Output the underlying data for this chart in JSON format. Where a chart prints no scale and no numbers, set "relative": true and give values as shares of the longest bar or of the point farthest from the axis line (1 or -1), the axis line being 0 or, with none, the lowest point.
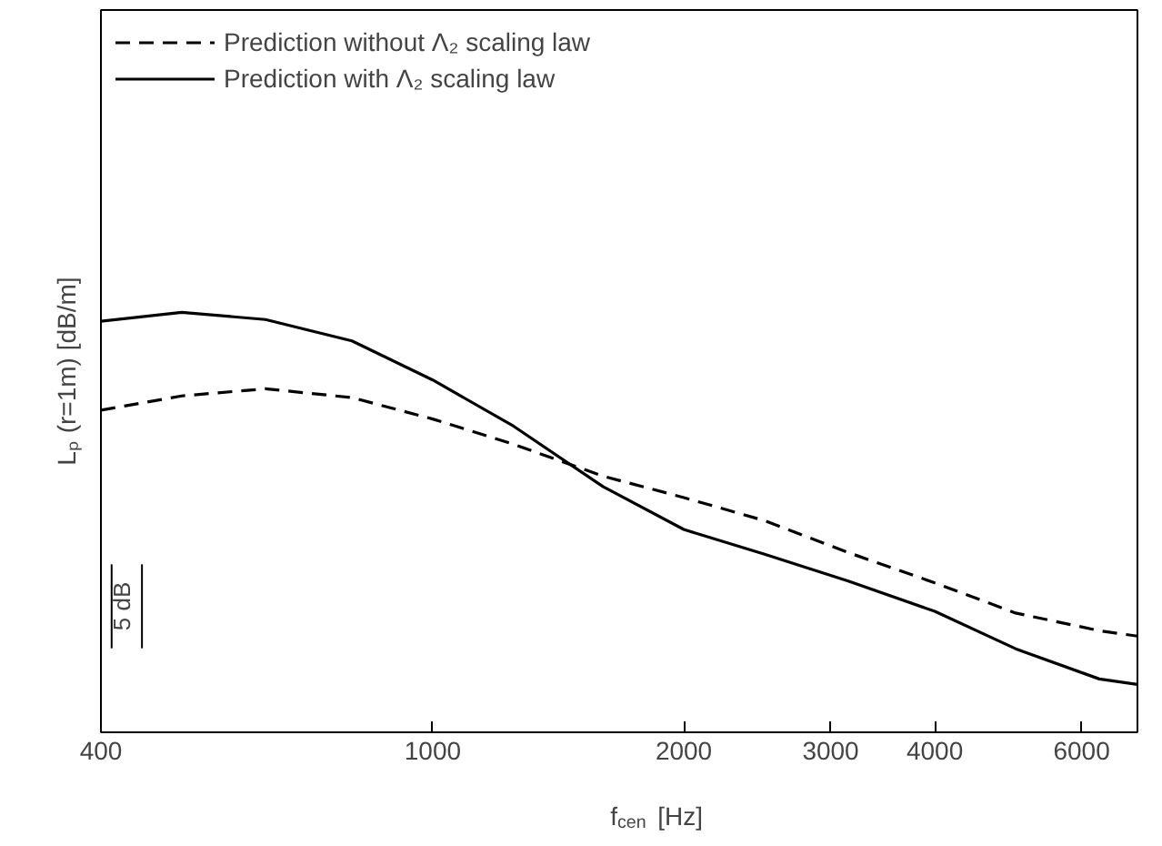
{
  "chart_data": {
    "type": "line",
    "relative": true,
    "xlabel": "f$_{cen}$ [Hz]",
    "ylabel": "Lₚ (r=1m) [dB/m]",
    "log": "x",
    "xlim": [
      400,
      7000
    ],
    "xticks": [
      400,
      1000,
      2000,
      3000,
      4000,
      6000
    ],
    "legend": "top left",
    "grid": false,
    "marker": "none",
    "x": [
      400,
      500,
      630,
      800,
      1000,
      1250,
      1600,
      2000,
      2500,
      3150,
      4000,
      5000,
      6300,
      7000
    ],
    "series": [
      {
        "name": "Prediction without Λ₂ scaling law",
        "color": "#000000",
        "line_style": "dashed",
        "values": [
          0.767,
          0.801,
          0.818,
          0.797,
          0.746,
          0.686,
          0.61,
          0.559,
          0.504,
          0.428,
          0.356,
          0.284,
          0.242,
          0.229
        ]
      },
      {
        "name": "Prediction with Λ₂ scaling law",
        "color": "#000000",
        "line_style": "solid",
        "values": [
          0.979,
          1.0,
          0.983,
          0.932,
          0.839,
          0.729,
          0.585,
          0.483,
          0.424,
          0.36,
          0.288,
          0.199,
          0.127,
          0.114
        ]
      }
    ],
    "annotations": [
      "5 dB"
    ]
  }
}
